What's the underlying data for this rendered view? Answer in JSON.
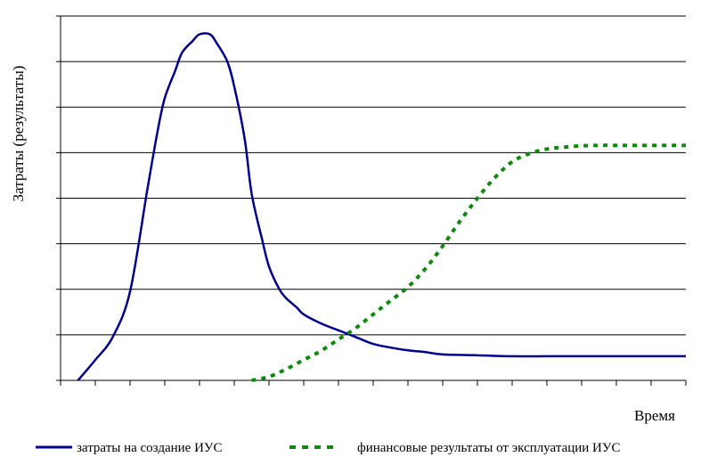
{
  "chart_data": {
    "type": "line",
    "title": "",
    "xlabel": "Время",
    "ylabel": "Затраты (результаты)",
    "x_ticks": 18,
    "y_gridlines": 8,
    "ylim": [
      0,
      8
    ],
    "xlim": [
      0,
      18
    ],
    "grid": true,
    "legend_placement": "bottom",
    "series": [
      {
        "name": "затраты на создание ИУС",
        "style": "solid",
        "color": "#00008B",
        "x": [
          0.5,
          1.0,
          1.5,
          2.0,
          2.5,
          2.8,
          3.0,
          3.3,
          3.5,
          3.8,
          4.0,
          4.3,
          4.5,
          4.8,
          5.0,
          5.3,
          5.5,
          5.8,
          6.0,
          6.3,
          6.5,
          6.8,
          7.0,
          7.5,
          8.0,
          8.5,
          9.0,
          9.5,
          10.0,
          10.5,
          11.0,
          12.0,
          13.0,
          14.0,
          15.0,
          16.0,
          17.0,
          18.0
        ],
        "y": [
          0.0,
          0.45,
          0.95,
          1.95,
          4.2,
          5.5,
          6.2,
          6.8,
          7.2,
          7.45,
          7.6,
          7.6,
          7.4,
          7.0,
          6.45,
          5.3,
          4.1,
          3.1,
          2.5,
          2.0,
          1.8,
          1.6,
          1.45,
          1.25,
          1.1,
          0.95,
          0.8,
          0.72,
          0.66,
          0.62,
          0.57,
          0.55,
          0.53,
          0.53,
          0.53,
          0.53,
          0.53,
          0.53
        ]
      },
      {
        "name": "финансовые результаты от эксплуатации ИУС",
        "style": "dotted",
        "color": "#0B8A0B",
        "x": [
          5.5,
          6.0,
          6.5,
          7.0,
          7.5,
          8.0,
          8.5,
          9.0,
          9.5,
          10.0,
          10.5,
          11.0,
          11.5,
          12.0,
          12.5,
          13.0,
          13.5,
          14.0,
          14.5,
          15.0,
          15.5,
          16.0,
          17.0,
          18.0
        ],
        "y": [
          0.0,
          0.08,
          0.25,
          0.45,
          0.65,
          0.9,
          1.15,
          1.45,
          1.75,
          2.05,
          2.45,
          2.95,
          3.5,
          4.0,
          4.45,
          4.8,
          4.98,
          5.08,
          5.12,
          5.15,
          5.16,
          5.16,
          5.16,
          5.16
        ]
      }
    ]
  }
}
